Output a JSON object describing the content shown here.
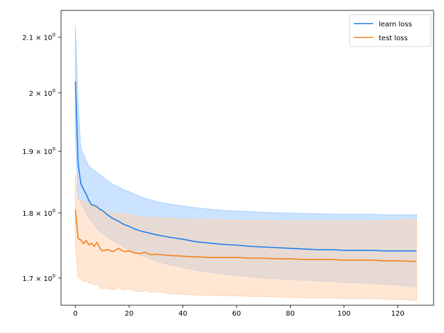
{
  "chart_data": {
    "type": "line",
    "title": "",
    "xlabel": "",
    "ylabel": "",
    "xlim": [
      -5.35,
      133.35
    ],
    "ylim": [
      1.66,
      2.15
    ],
    "yscale": "log",
    "grid": false,
    "legend_position": "top-right",
    "x_ticks": [
      0,
      20,
      40,
      60,
      80,
      100,
      120
    ],
    "x_tick_labels": [
      "0",
      "20",
      "40",
      "60",
      "80",
      "100",
      "120"
    ],
    "y_ticks": [
      1.7,
      1.8,
      1.9,
      2.0,
      2.1
    ],
    "y_tick_labels": [
      {
        "mantissa": "1.7",
        "times": "×",
        "base": "10",
        "exp": "0"
      },
      {
        "mantissa": "1.8",
        "times": "×",
        "base": "10",
        "exp": "0"
      },
      {
        "mantissa": "1.9",
        "times": "×",
        "base": "10",
        "exp": "0"
      },
      {
        "mantissa": "2",
        "times": "×",
        "base": "10",
        "exp": "0"
      },
      {
        "mantissa": "2.1",
        "times": "×",
        "base": "10",
        "exp": "0"
      }
    ],
    "series": [
      {
        "name": "learn loss",
        "color": "#1f7ee8",
        "band_color": "#a9d0ff",
        "x": [
          0,
          1,
          2,
          3,
          4,
          5,
          6,
          7,
          8,
          9,
          10,
          12,
          14,
          16,
          18,
          20,
          22,
          24,
          26,
          28,
          30,
          35,
          40,
          45,
          50,
          55,
          60,
          65,
          70,
          75,
          80,
          85,
          90,
          95,
          100,
          105,
          110,
          115,
          120,
          127
        ],
        "mean": [
          2.02,
          1.88,
          1.847,
          1.838,
          1.83,
          1.82,
          1.813,
          1.812,
          1.81,
          1.806,
          1.804,
          1.797,
          1.791,
          1.787,
          1.782,
          1.779,
          1.775,
          1.772,
          1.77,
          1.768,
          1.766,
          1.762,
          1.759,
          1.755,
          1.753,
          1.751,
          1.75,
          1.748,
          1.747,
          1.746,
          1.745,
          1.744,
          1.743,
          1.743,
          1.742,
          1.742,
          1.742,
          1.741,
          1.741,
          1.741
        ],
        "upper": [
          2.12,
          1.98,
          1.905,
          1.895,
          1.885,
          1.875,
          1.872,
          1.868,
          1.865,
          1.862,
          1.858,
          1.852,
          1.845,
          1.842,
          1.837,
          1.834,
          1.83,
          1.826,
          1.823,
          1.821,
          1.818,
          1.814,
          1.811,
          1.808,
          1.806,
          1.804,
          1.803,
          1.802,
          1.801,
          1.8,
          1.8,
          1.799,
          1.799,
          1.798,
          1.798,
          1.798,
          1.798,
          1.797,
          1.797,
          1.797
        ],
        "lower": [
          1.93,
          1.825,
          1.815,
          1.808,
          1.8,
          1.793,
          1.788,
          1.782,
          1.776,
          1.772,
          1.768,
          1.762,
          1.757,
          1.752,
          1.747,
          1.743,
          1.739,
          1.735,
          1.732,
          1.729,
          1.726,
          1.72,
          1.716,
          1.712,
          1.709,
          1.706,
          1.704,
          1.702,
          1.7,
          1.699,
          1.698,
          1.697,
          1.696,
          1.695,
          1.694,
          1.693,
          1.692,
          1.691,
          1.69,
          1.686
        ]
      },
      {
        "name": "test loss",
        "color": "#f57f17",
        "band_color": "#ffd3b0",
        "x": [
          0,
          1,
          2,
          3,
          4,
          5,
          6,
          7,
          8,
          9,
          10,
          12,
          14,
          16,
          18,
          20,
          22,
          24,
          26,
          28,
          30,
          35,
          40,
          45,
          50,
          55,
          60,
          65,
          70,
          75,
          80,
          85,
          90,
          95,
          100,
          105,
          110,
          115,
          120,
          127
        ],
        "mean": [
          1.805,
          1.76,
          1.758,
          1.752,
          1.757,
          1.75,
          1.753,
          1.748,
          1.754,
          1.746,
          1.741,
          1.743,
          1.74,
          1.745,
          1.74,
          1.741,
          1.738,
          1.737,
          1.739,
          1.735,
          1.736,
          1.734,
          1.733,
          1.732,
          1.731,
          1.731,
          1.731,
          1.73,
          1.73,
          1.729,
          1.729,
          1.728,
          1.728,
          1.728,
          1.727,
          1.727,
          1.727,
          1.726,
          1.726,
          1.725
        ],
        "upper": [
          1.862,
          1.822,
          1.82,
          1.817,
          1.818,
          1.813,
          1.814,
          1.811,
          1.813,
          1.808,
          1.803,
          1.802,
          1.799,
          1.801,
          1.798,
          1.797,
          1.795,
          1.793,
          1.794,
          1.792,
          1.793,
          1.791,
          1.79,
          1.79,
          1.789,
          1.789,
          1.788,
          1.788,
          1.788,
          1.787,
          1.787,
          1.787,
          1.787,
          1.787,
          1.787,
          1.787,
          1.787,
          1.788,
          1.788,
          1.79
        ],
        "lower": [
          1.752,
          1.702,
          1.7,
          1.695,
          1.697,
          1.692,
          1.694,
          1.689,
          1.693,
          1.687,
          1.684,
          1.685,
          1.682,
          1.686,
          1.682,
          1.684,
          1.681,
          1.68,
          1.682,
          1.679,
          1.68,
          1.677,
          1.676,
          1.675,
          1.675,
          1.674,
          1.674,
          1.673,
          1.673,
          1.672,
          1.672,
          1.671,
          1.671,
          1.671,
          1.67,
          1.67,
          1.67,
          1.669,
          1.669,
          1.667
        ]
      }
    ]
  }
}
